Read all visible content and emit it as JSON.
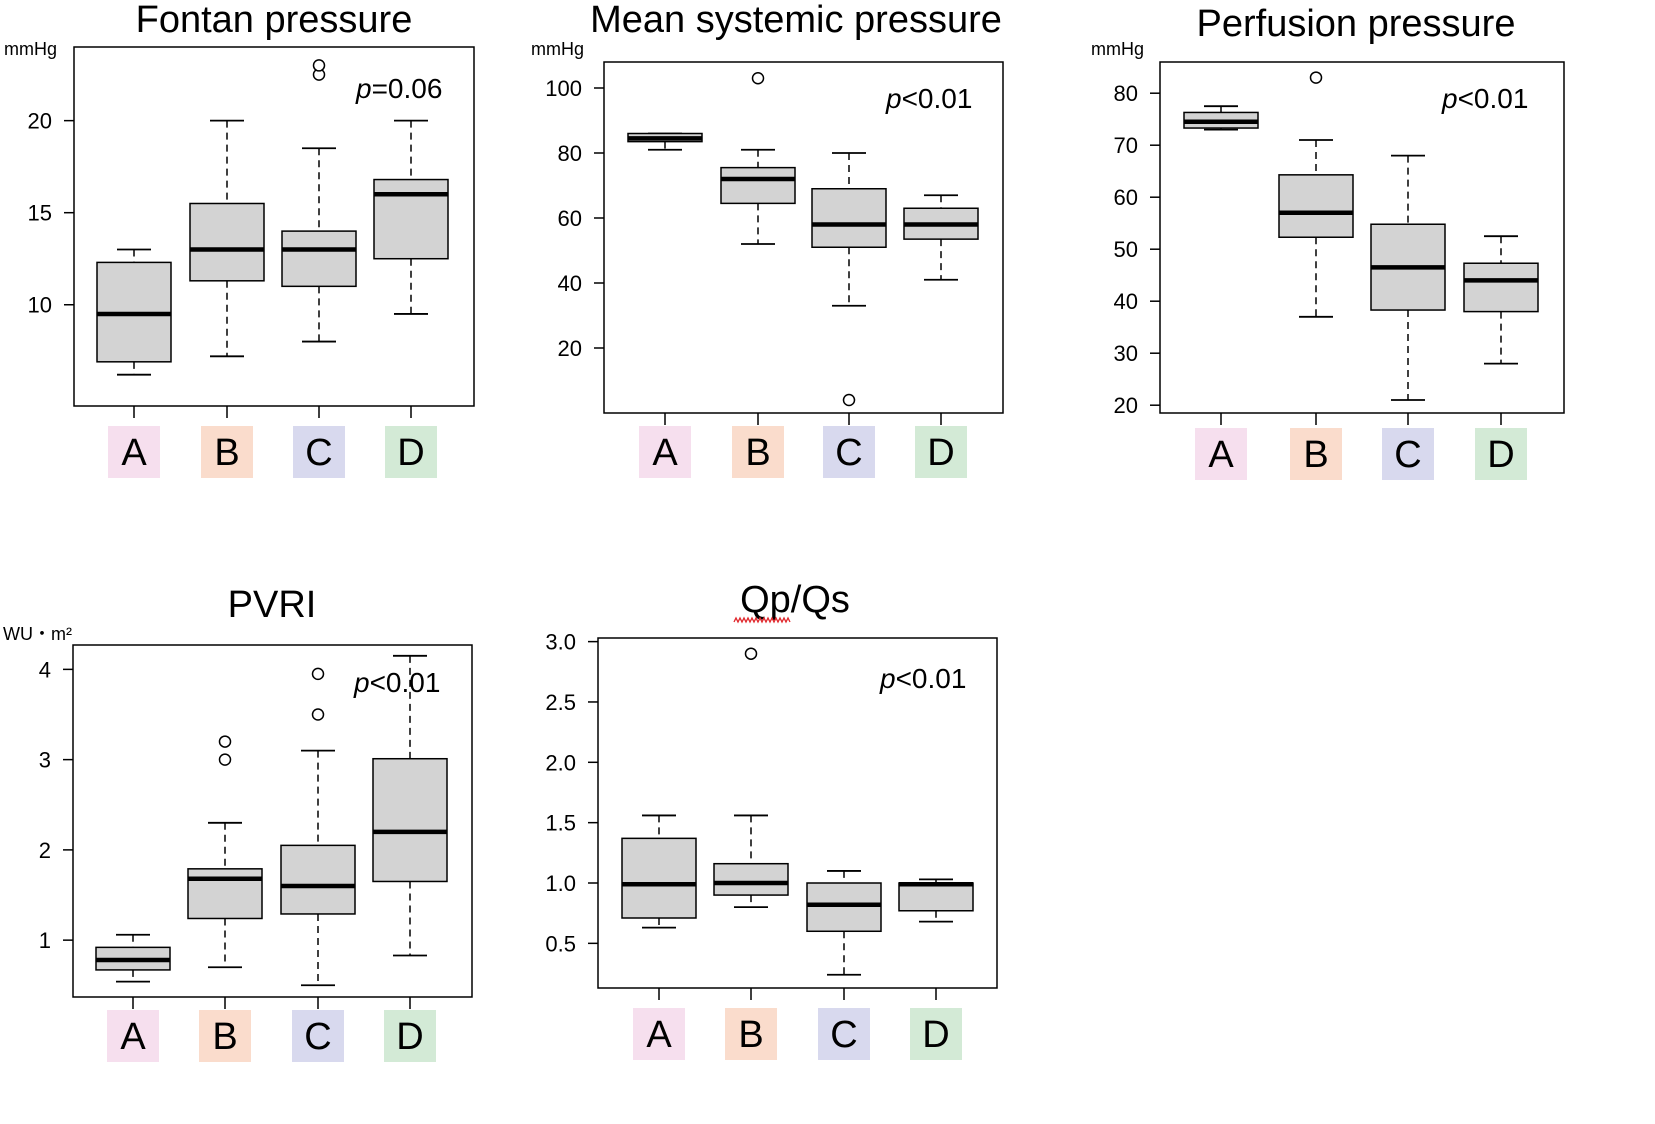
{
  "group_colors": {
    "A": "#f6dfee",
    "B": "#fadccc",
    "C": "#d8d9ee",
    "D": "#d3ead6"
  },
  "box_fill": "#d3d3d3",
  "chart_data": [
    {
      "type": "boxplot",
      "title": "Fontan pressure",
      "unit": "mmHg",
      "p_label": "=0.06",
      "categories": [
        "A",
        "B",
        "C",
        "D"
      ],
      "yticks": [
        10,
        15,
        20
      ],
      "ylim": [
        4.5,
        24
      ],
      "boxes": [
        {
          "group": "A",
          "whisker_low": 6.2,
          "q1": 6.9,
          "median": 9.5,
          "q3": 12.3,
          "whisker_high": 13.0,
          "outliers": []
        },
        {
          "group": "B",
          "whisker_low": 7.2,
          "q1": 11.3,
          "median": 13.0,
          "q3": 15.5,
          "whisker_high": 20.0,
          "outliers": []
        },
        {
          "group": "C",
          "whisker_low": 8.0,
          "q1": 11.0,
          "median": 13.0,
          "q3": 14.0,
          "whisker_high": 18.5,
          "outliers": [
            22.5,
            23.0
          ]
        },
        {
          "group": "D",
          "whisker_low": 9.5,
          "q1": 12.5,
          "median": 16.0,
          "q3": 16.8,
          "whisker_high": 20.0,
          "outliers": []
        }
      ]
    },
    {
      "type": "boxplot",
      "title": "Mean systemic pressure",
      "unit": "mmHg",
      "p_label": "<0.01",
      "categories": [
        "A",
        "B",
        "C",
        "D"
      ],
      "yticks": [
        20,
        40,
        60,
        80,
        100
      ],
      "ylim": [
        0,
        108
      ],
      "boxes": [
        {
          "group": "A",
          "whisker_low": 81,
          "q1": 83.5,
          "median": 84.5,
          "q3": 86,
          "whisker_high": 86,
          "outliers": []
        },
        {
          "group": "B",
          "whisker_low": 52,
          "q1": 64.5,
          "median": 72,
          "q3": 75.5,
          "whisker_high": 81,
          "outliers": [
            103
          ]
        },
        {
          "group": "C",
          "whisker_low": 33,
          "q1": 51,
          "median": 58,
          "q3": 69,
          "whisker_high": 80,
          "outliers": [
            4
          ]
        },
        {
          "group": "D",
          "whisker_low": 41,
          "q1": 53.5,
          "median": 58,
          "q3": 63,
          "whisker_high": 67,
          "outliers": []
        }
      ]
    },
    {
      "type": "boxplot",
      "title": "Perfusion pressure",
      "unit": "mmHg",
      "p_label": "<0.01",
      "categories": [
        "A",
        "B",
        "C",
        "D"
      ],
      "yticks": [
        20,
        30,
        40,
        50,
        60,
        70,
        80
      ],
      "ylim": [
        18.5,
        86
      ],
      "boxes": [
        {
          "group": "A",
          "whisker_low": 73,
          "q1": 73.3,
          "median": 74.5,
          "q3": 76.3,
          "whisker_high": 77.5,
          "outliers": []
        },
        {
          "group": "B",
          "whisker_low": 37,
          "q1": 52.3,
          "median": 57,
          "q3": 64.3,
          "whisker_high": 71,
          "outliers": [
            83
          ]
        },
        {
          "group": "C",
          "whisker_low": 21,
          "q1": 38.3,
          "median": 46.5,
          "q3": 54.8,
          "whisker_high": 68,
          "outliers": []
        },
        {
          "group": "D",
          "whisker_low": 28,
          "q1": 38,
          "median": 44,
          "q3": 47.3,
          "whisker_high": 52.5,
          "outliers": []
        }
      ]
    },
    {
      "type": "boxplot",
      "title": "PVRI",
      "unit": "WU・m²",
      "p_label": "<0.01",
      "categories": [
        "A",
        "B",
        "C",
        "D"
      ],
      "yticks": [
        1,
        2,
        3,
        4
      ],
      "ylim": [
        0.37,
        4.27
      ],
      "boxes": [
        {
          "group": "A",
          "whisker_low": 0.54,
          "q1": 0.67,
          "median": 0.78,
          "q3": 0.92,
          "whisker_high": 1.06,
          "outliers": []
        },
        {
          "group": "B",
          "whisker_low": 0.7,
          "q1": 1.24,
          "median": 1.68,
          "q3": 1.79,
          "whisker_high": 2.3,
          "outliers": [
            3.0,
            3.2
          ]
        },
        {
          "group": "C",
          "whisker_low": 0.5,
          "q1": 1.29,
          "median": 1.6,
          "q3": 2.05,
          "whisker_high": 3.1,
          "outliers": [
            3.5,
            3.95
          ]
        },
        {
          "group": "D",
          "whisker_low": 0.83,
          "q1": 1.65,
          "median": 2.2,
          "q3": 3.01,
          "whisker_high": 4.15,
          "outliers": []
        }
      ]
    },
    {
      "type": "boxplot",
      "title": "Qp/Qs",
      "unit": "",
      "p_label": "<0.01",
      "categories": [
        "A",
        "B",
        "C",
        "D"
      ],
      "yticks": [
        "0.5",
        "1.0",
        "1.5",
        "2.0",
        "2.5",
        "3.0"
      ],
      "ylim": [
        0.13,
        3.03
      ],
      "boxes": [
        {
          "group": "A",
          "whisker_low": 0.63,
          "q1": 0.71,
          "median": 0.99,
          "q3": 1.37,
          "whisker_high": 1.56,
          "outliers": []
        },
        {
          "group": "B",
          "whisker_low": 0.8,
          "q1": 0.9,
          "median": 1.0,
          "q3": 1.16,
          "whisker_high": 1.56,
          "outliers": [
            2.9
          ]
        },
        {
          "group": "C",
          "whisker_low": 0.24,
          "q1": 0.6,
          "median": 0.82,
          "q3": 1.0,
          "whisker_high": 1.1,
          "outliers": []
        },
        {
          "group": "D",
          "whisker_low": 0.68,
          "q1": 0.77,
          "median": 0.99,
          "q3": 1.0,
          "whisker_high": 1.03,
          "outliers": []
        }
      ]
    }
  ]
}
